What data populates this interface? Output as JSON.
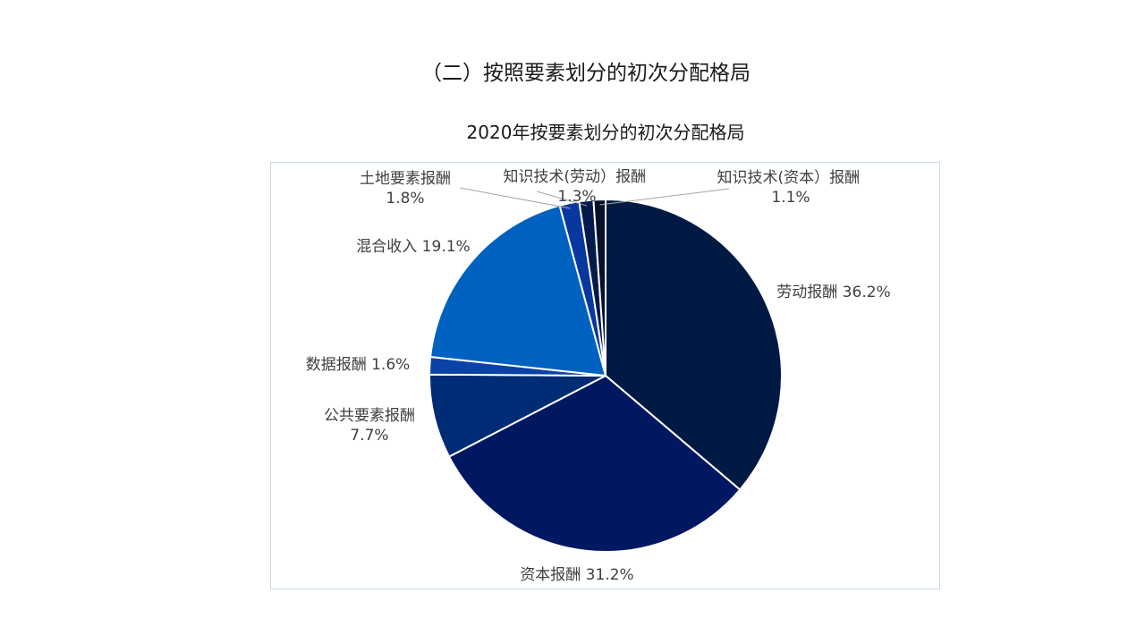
{
  "page": {
    "section_heading": "（二）按照要素划分的初次分配格局"
  },
  "chart_data": {
    "type": "pie",
    "title": "2020年按要素划分的初次分配格局",
    "slices": [
      {
        "label": "劳动报酬",
        "value": 36.2,
        "display": "劳动报酬 36.2%",
        "color": "#001a44"
      },
      {
        "label": "资本报酬",
        "value": 31.2,
        "display": "资本报酬 31.2%",
        "color": "#001861"
      },
      {
        "label": "公共要素报酬",
        "value": 7.7,
        "display": "公共要素报酬 7.7%",
        "color": "#002b75"
      },
      {
        "label": "数据报酬",
        "value": 1.6,
        "display": "数据报酬 1.6%",
        "color": "#0a43a5"
      },
      {
        "label": "混合收入",
        "value": 19.1,
        "display": "混合收入 19.1%",
        "color": "#0062c0"
      },
      {
        "label": "土地要素报酬",
        "value": 1.8,
        "display": "土地要素报酬 1.8%",
        "color": "#0837a0"
      },
      {
        "label": "知识技术(劳动）报酬",
        "value": 1.3,
        "display": "知识技术(劳动）报酬 1.3%",
        "color": "#041a4c"
      },
      {
        "label": "知识技术(资本）报酬",
        "value": 1.1,
        "display": "知识技术(资本）报酬 1.1%",
        "color": "#06102a"
      }
    ]
  }
}
